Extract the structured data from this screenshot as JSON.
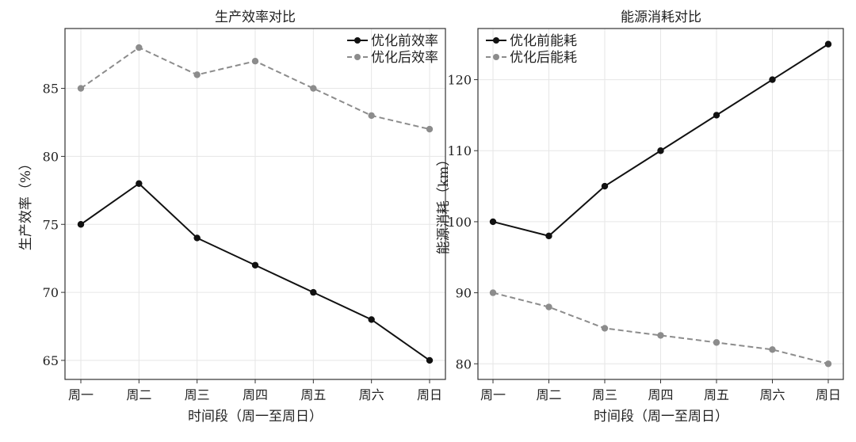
{
  "chart_data": [
    {
      "type": "line",
      "title": "生产效率对比",
      "xlabel": "时间段（周一至周日）",
      "ylabel": "生产效率（%）",
      "categories": [
        "周一",
        "周二",
        "周三",
        "周四",
        "周五",
        "周六",
        "周日"
      ],
      "series": [
        {
          "name": "优化前效率",
          "values": [
            75,
            78,
            74,
            72,
            70,
            68,
            65
          ],
          "color": "#111111",
          "style": "solid"
        },
        {
          "name": "优化后效率",
          "values": [
            85,
            88,
            86,
            87,
            85,
            83,
            82
          ],
          "color": "#8c8c8c",
          "style": "dashed"
        }
      ],
      "ylim": [
        63.6,
        89.4
      ],
      "yticks": [
        65,
        70,
        75,
        80,
        85
      ],
      "grid": true,
      "legend": "top-right"
    },
    {
      "type": "line",
      "title": "能源消耗对比",
      "xlabel": "时间段（周一至周日）",
      "ylabel": "能源消耗（km）",
      "categories": [
        "周一",
        "周二",
        "周三",
        "周四",
        "周五",
        "周六",
        "周日"
      ],
      "series": [
        {
          "name": "优化前能耗",
          "values": [
            100,
            98,
            105,
            110,
            115,
            120,
            125
          ],
          "color": "#111111",
          "style": "solid"
        },
        {
          "name": "优化后能耗",
          "values": [
            90,
            88,
            85,
            84,
            83,
            82,
            80
          ],
          "color": "#8c8c8c",
          "style": "dashed"
        }
      ],
      "ylim": [
        77.8,
        127.2
      ],
      "yticks": [
        80,
        90,
        100,
        110,
        120
      ],
      "grid": true,
      "legend": "top-left"
    }
  ]
}
